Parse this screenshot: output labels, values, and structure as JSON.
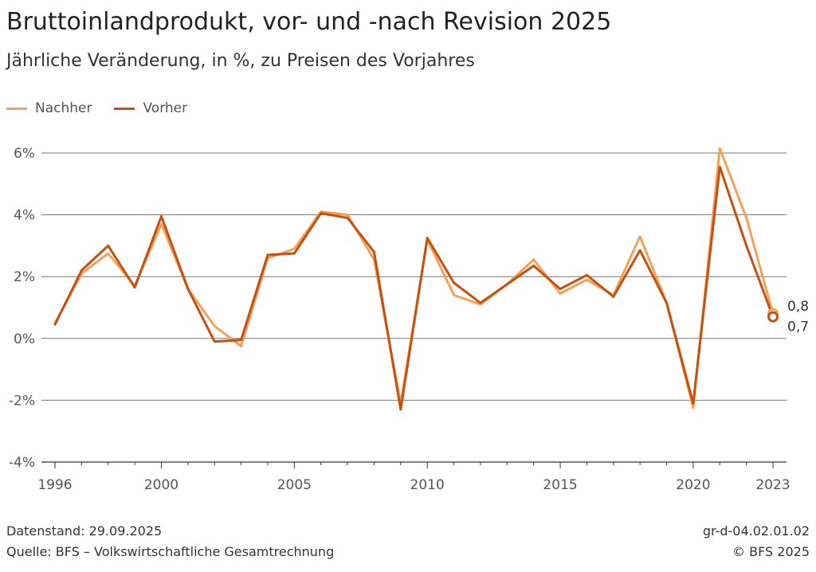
{
  "header": {
    "title": "Bruttoinlandprodukt, vor- und -nach Revision 2025",
    "subtitle": "Jährliche Veränderung, in %, zu Preisen des Vorjahres"
  },
  "legend": {
    "items": [
      {
        "label": "Nachher",
        "color": "#F4A25B"
      },
      {
        "label": "Vorher",
        "color": "#C8500F"
      }
    ]
  },
  "chart_data": {
    "type": "line",
    "title": "Bruttoinlandprodukt, vor- und -nach Revision 2025",
    "subtitle": "Jährliche Veränderung, in %, zu Preisen des Vorjahres",
    "xlabel": "",
    "ylabel": "",
    "x": [
      1996,
      1997,
      1998,
      1999,
      2000,
      2001,
      2002,
      2003,
      2004,
      2005,
      2006,
      2007,
      2008,
      2009,
      2010,
      2011,
      2012,
      2013,
      2014,
      2015,
      2016,
      2017,
      2018,
      2019,
      2020,
      2021,
      2022,
      2023
    ],
    "series": [
      {
        "name": "Nachher",
        "color": "#F4A25B",
        "values": [
          0.5,
          2.1,
          2.75,
          1.7,
          3.7,
          1.6,
          0.4,
          -0.25,
          2.6,
          2.9,
          4.1,
          4.0,
          2.55,
          -2.1,
          3.2,
          1.4,
          1.1,
          1.75,
          2.55,
          1.45,
          1.9,
          1.4,
          3.3,
          1.15,
          -2.25,
          6.15,
          3.9,
          0.8
        ]
      },
      {
        "name": "Vorher",
        "color": "#C8500F",
        "values": [
          0.45,
          2.2,
          3.0,
          1.65,
          3.95,
          1.6,
          -0.1,
          -0.05,
          2.7,
          2.75,
          4.05,
          3.9,
          2.8,
          -2.3,
          3.25,
          1.8,
          1.15,
          1.75,
          2.35,
          1.6,
          2.05,
          1.35,
          2.85,
          1.15,
          -2.1,
          5.55,
          3.0,
          0.7
        ]
      }
    ],
    "ylim": [
      -4,
      6
    ],
    "yticks": [
      6,
      4,
      2,
      0,
      -2,
      -4
    ],
    "ytick_labels": [
      "6%",
      "4%",
      "2%",
      "0%",
      "-2%",
      "-4%"
    ],
    "xticks": [
      1996,
      2000,
      2005,
      2010,
      2015,
      2020,
      2023
    ],
    "xtick_labels": [
      "1996",
      "2000",
      "2005",
      "2010",
      "2015",
      "2020",
      "2023"
    ],
    "end_labels": [
      "0,8",
      "0,7"
    ],
    "grid": true,
    "legend_position": "top-left"
  },
  "footer": {
    "date_label": "Datenstand: 29.09.2025",
    "source_label": "Quelle: BFS – Volkswirtschaftliche Gesamtrechnung",
    "code_label": "gr-d-04.02.01.02",
    "copyright_label": "© BFS 2025"
  },
  "colors": {
    "grid": "#777777",
    "axis": "#333333",
    "tick_text": "#555555"
  }
}
